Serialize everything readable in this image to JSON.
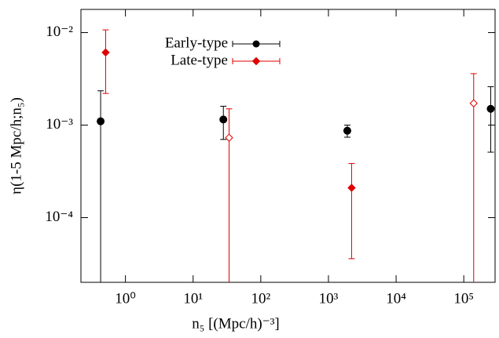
{
  "chart_data": {
    "type": "errorbar",
    "xlabel": "n₅ [(Mpc/h)⁻³]",
    "ylabel": "η(1-5 Mpc/h;n₅)",
    "xscale": "log",
    "yscale": "log",
    "xlim": [
      0.22,
      290000
    ],
    "ylim": [
      2e-05,
      0.0178
    ],
    "xticks": [
      {
        "value": 1,
        "label": "10⁰"
      },
      {
        "value": 10,
        "label": "10¹"
      },
      {
        "value": 100,
        "label": "10²"
      },
      {
        "value": 1000,
        "label": "10³"
      },
      {
        "value": 10000,
        "label": "10⁴"
      },
      {
        "value": 100000,
        "label": "10⁵"
      }
    ],
    "yticks": [
      {
        "value": 0.0001,
        "label": "10⁻⁴"
      },
      {
        "value": 0.001,
        "label": "10⁻³"
      },
      {
        "value": 0.01,
        "label": "10⁻²"
      }
    ],
    "legend": "upper left",
    "series": [
      {
        "name": "Early-type",
        "color": "#000000",
        "marker": "circle",
        "x": [
          0.43,
          28,
          1900,
          250000
        ],
        "values": [
          0.0011,
          0.00115,
          0.00087,
          0.0015
        ],
        "low": [
          1e-05,
          0.0007,
          0.00074,
          0.00051
        ],
        "high": [
          0.00235,
          0.0016,
          0.001,
          0.0026
        ],
        "open": [
          false,
          false,
          false,
          false
        ]
      },
      {
        "name": "Late-type",
        "color": "#e00000",
        "marker": "diamond",
        "x": [
          0.51,
          34,
          2200,
          140000
        ],
        "values": [
          0.0061,
          0.00073,
          0.00021,
          0.00172
        ],
        "low": [
          0.0022,
          1e-05,
          3.6e-05,
          1e-05
        ],
        "high": [
          0.0107,
          0.0015,
          0.000385,
          0.0036
        ],
        "open": [
          false,
          true,
          false,
          true
        ]
      }
    ]
  }
}
